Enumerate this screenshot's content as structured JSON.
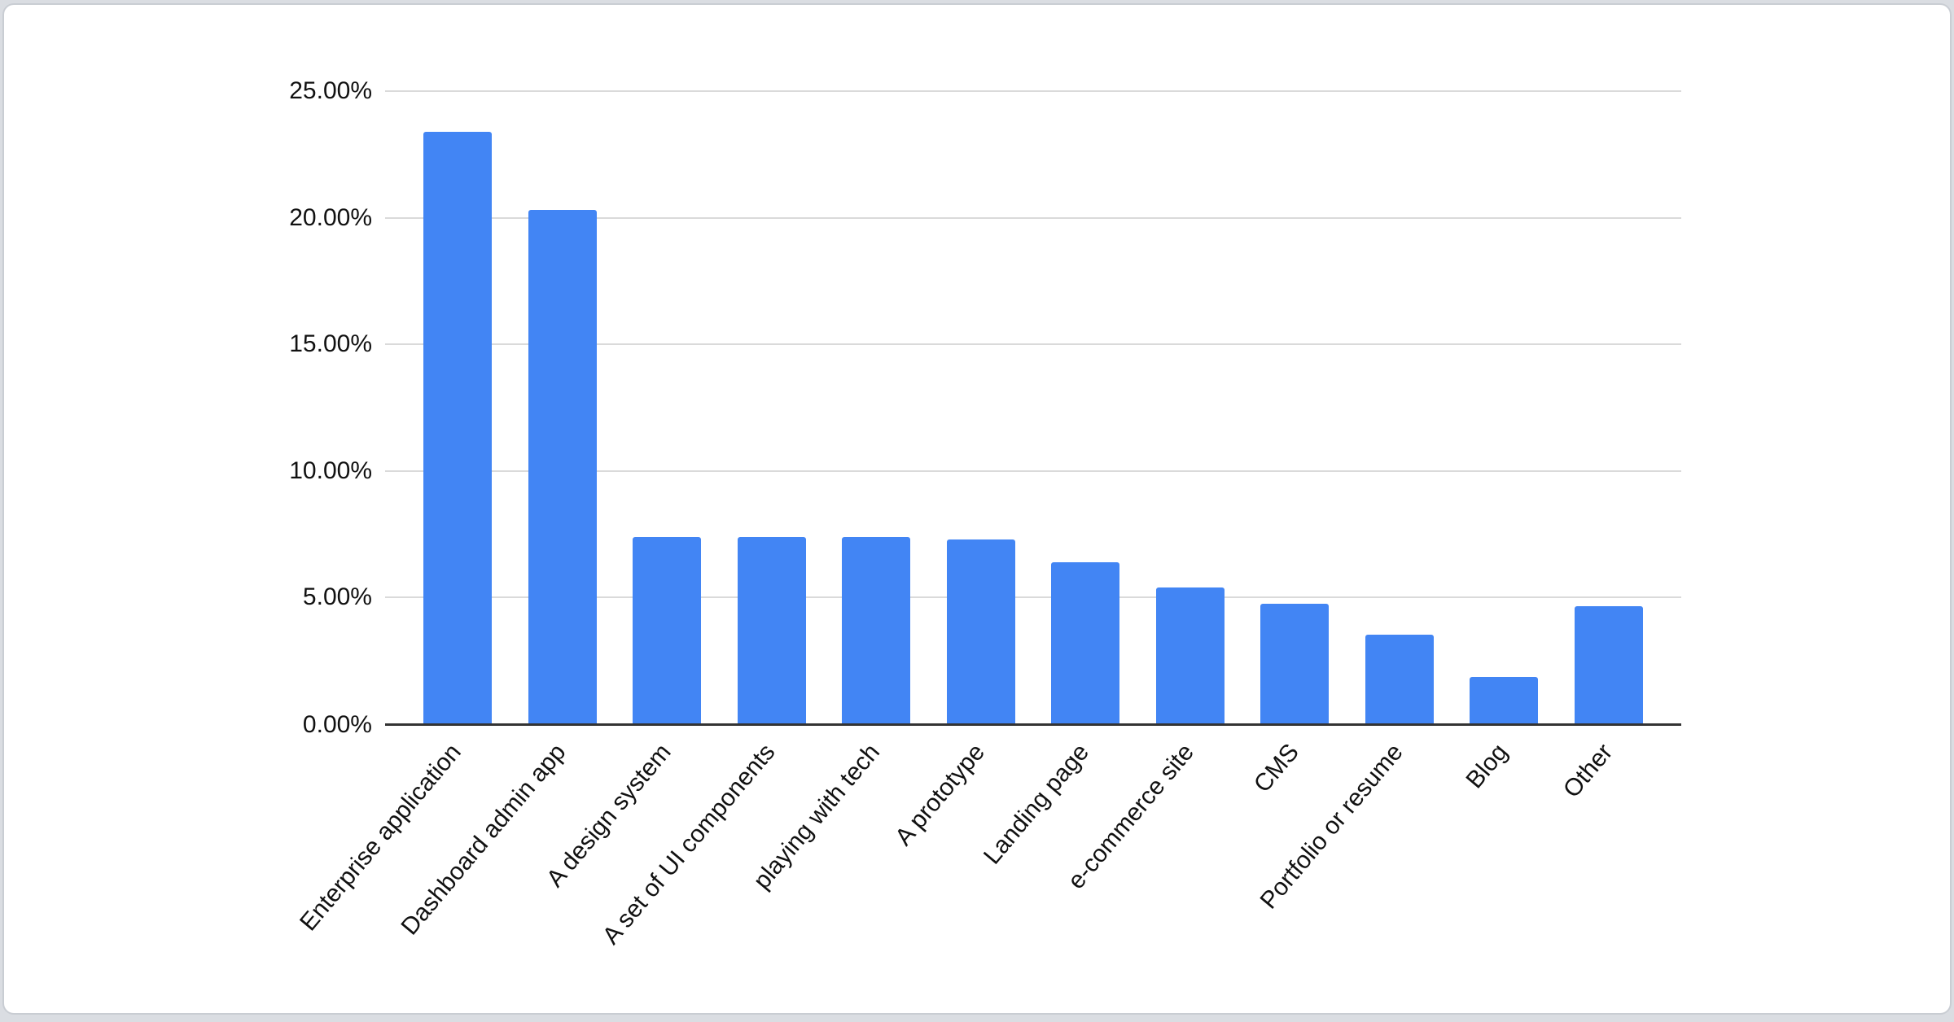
{
  "page": {
    "background": "#dadde2"
  },
  "card": {
    "background": "#ffffff",
    "border_color": "#c9cdd3"
  },
  "chart_data": {
    "type": "bar",
    "title": "",
    "xlabel": "",
    "ylabel": "",
    "categories": [
      "Enterprise application",
      "Dashboard admin app",
      "A design system",
      "A set of UI components",
      "playing with tech",
      "A prototype",
      "Landing page",
      "e-commerce site",
      "CMS",
      "Portfolio or resume",
      "Blog",
      "Other"
    ],
    "values": [
      23.4,
      20.3,
      7.4,
      7.4,
      7.4,
      7.3,
      6.4,
      5.4,
      4.75,
      3.55,
      1.85,
      4.65
    ],
    "value_unit": "%",
    "ylim": [
      0,
      25
    ],
    "y_ticks": [
      {
        "value": 25,
        "label": "25.00%"
      },
      {
        "value": 20,
        "label": "20.00%"
      },
      {
        "value": 15,
        "label": "15.00%"
      },
      {
        "value": 10,
        "label": "10.00%"
      },
      {
        "value": 5,
        "label": "5.00%"
      },
      {
        "value": 0,
        "label": "0.00%"
      }
    ],
    "grid": true,
    "legend_position": "none",
    "x_label_rotation_deg": -50,
    "bar_color": "#4285f4",
    "gridline_color": "#dadada",
    "axis_line_color": "#333333",
    "label_color": "#111111"
  }
}
